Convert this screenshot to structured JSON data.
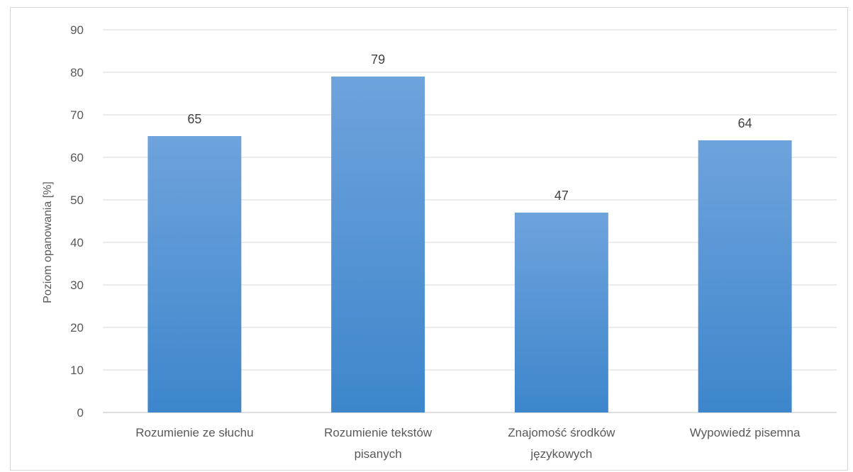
{
  "chart_data": {
    "type": "bar",
    "categories": [
      [
        "Rozumienie ze słuchu"
      ],
      [
        "Rozumienie tekstów",
        "pisanych"
      ],
      [
        "Znajomość środków",
        "językowych"
      ],
      [
        "Wypowiedź pisemna"
      ]
    ],
    "values": [
      65,
      79,
      47,
      64
    ],
    "data_labels": [
      "65",
      "79",
      "47",
      "64"
    ],
    "title": "",
    "xlabel": "",
    "ylabel": "Poziom opanowania [%]",
    "ylim": [
      0,
      90
    ],
    "yticks": [
      0,
      10,
      20,
      30,
      40,
      50,
      60,
      70,
      80,
      90
    ],
    "grid": true,
    "legend": "none",
    "bar_color_top": "#6fa3dc",
    "bar_color_bottom": "#3d86cc"
  }
}
